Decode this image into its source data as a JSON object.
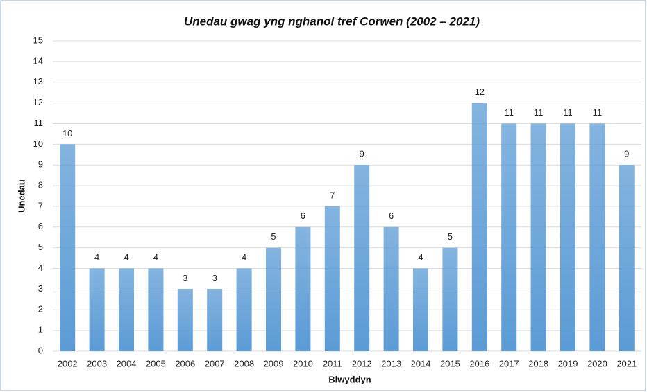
{
  "chart_data": {
    "type": "bar",
    "title": "Unedau gwag yng nghanol tref Corwen (2002 – 2021)",
    "x_label": "Blwyddyn",
    "y_label": "Unedau",
    "categories": [
      "2002",
      "2003",
      "2004",
      "2005",
      "2006",
      "2007",
      "2008",
      "2009",
      "2010",
      "2011",
      "2012",
      "2013",
      "2014",
      "2015",
      "2016",
      "2017",
      "2018",
      "2019",
      "2020",
      "2021"
    ],
    "values": [
      10,
      4,
      4,
      4,
      3,
      3,
      4,
      5,
      6,
      7,
      9,
      6,
      4,
      5,
      12,
      11,
      11,
      11,
      11,
      9
    ],
    "color": "#5b9bd5",
    "ylim": [
      0,
      15
    ],
    "yticks": [
      0,
      1,
      2,
      3,
      4,
      5,
      6,
      7,
      8,
      9,
      10,
      11,
      12,
      13,
      14,
      15
    ],
    "grid": true
  }
}
